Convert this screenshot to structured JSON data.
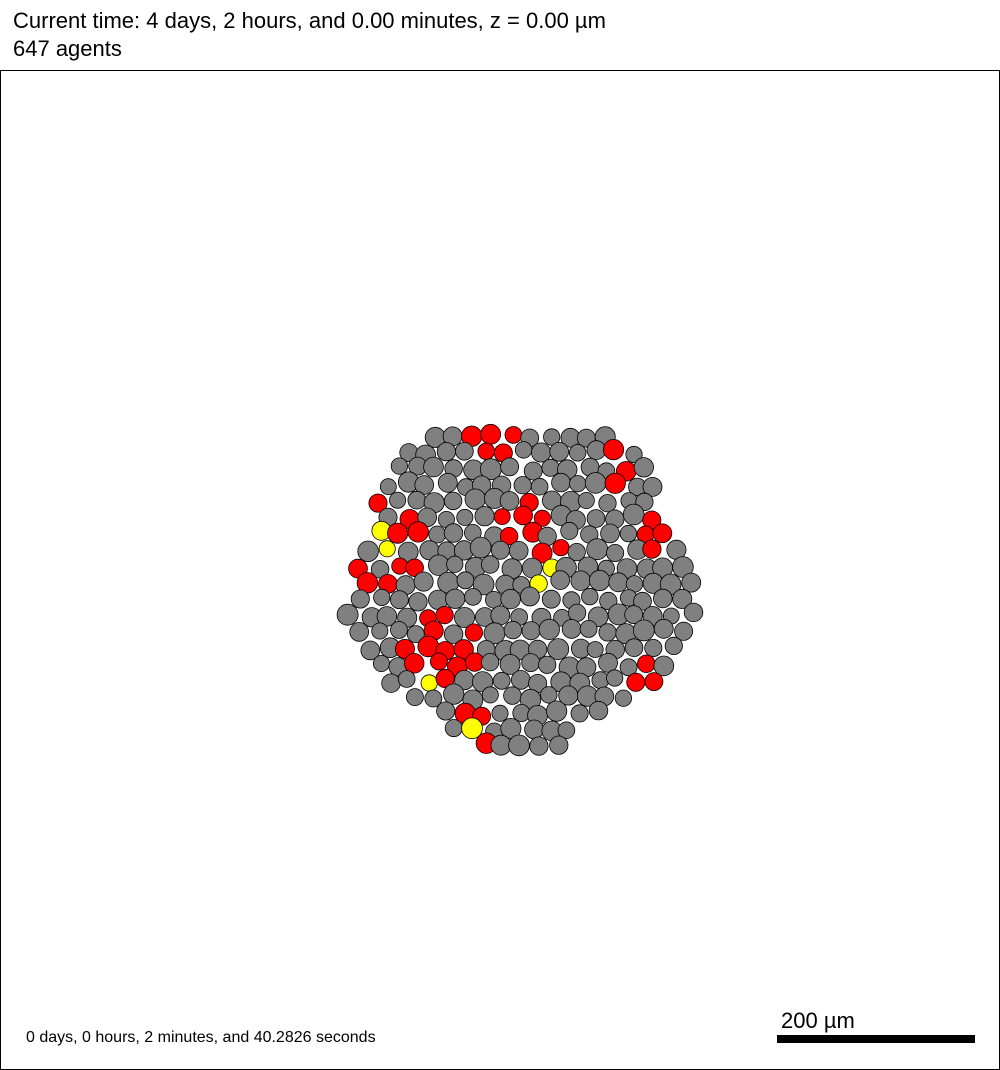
{
  "header": {
    "title": "Current time: 4 days, 2 hours, and 0.00 minutes, z = 0.00 µm",
    "agents": "647 agents"
  },
  "footer": {
    "elapsed": "0 days, 0 hours, 2 minutes, and 40.2826 seconds",
    "scale_label": "200 µm"
  },
  "colors": {
    "live_cell": "#808080",
    "red_cell": "#ff0000",
    "yellow_cell": "#ffff00",
    "cell_outline": "#000000",
    "background": "#ffffff"
  }
}
